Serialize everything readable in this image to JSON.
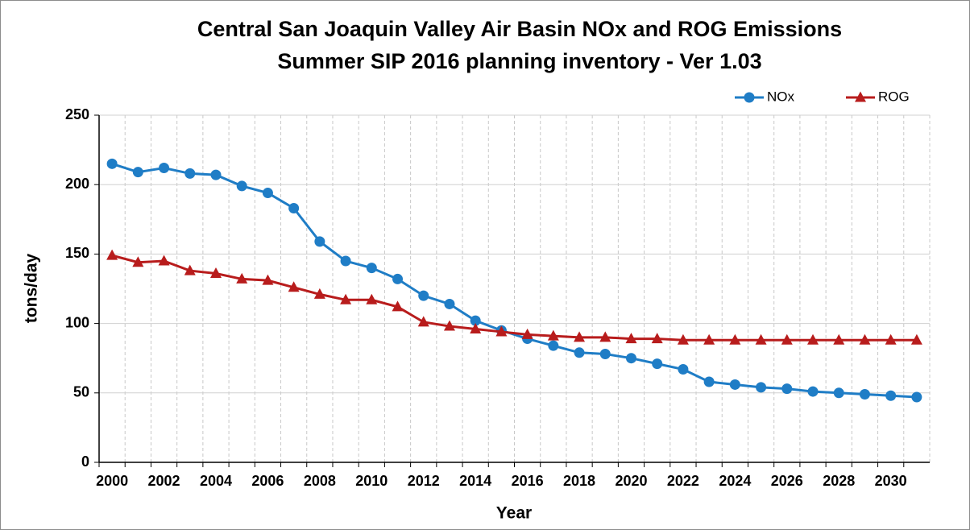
{
  "chart_data": {
    "type": "line",
    "title": "Central San Joaquin Valley Air Basin NOx and ROG Emissions",
    "subtitle": "Summer SIP 2016 planning inventory - Ver 1.03",
    "x_label": "Year",
    "y_label": "tons/day",
    "categories": [
      "2000",
      null,
      "2002",
      null,
      "2004",
      null,
      "2006",
      null,
      "2008",
      null,
      "2010",
      null,
      "2012",
      null,
      "2014",
      null,
      "2016",
      null,
      "2018",
      null,
      "2020",
      null,
      "2022",
      null,
      "2024",
      null,
      "2026",
      null,
      "2028",
      null,
      "2030",
      null
    ],
    "series": [
      {
        "name": "NOx",
        "color": "#1f7dc6",
        "marker": "circle",
        "values": [
          215,
          209,
          212,
          208,
          207,
          199,
          194,
          183,
          159,
          145,
          140,
          132,
          120,
          114,
          102,
          95,
          89,
          84,
          79,
          78,
          75,
          71,
          67,
          58,
          56,
          54,
          53,
          51,
          50,
          49,
          48,
          47
        ]
      },
      {
        "name": "ROG",
        "color": "#b81c1c",
        "marker": "triangle",
        "values": [
          149,
          144,
          145,
          138,
          136,
          132,
          131,
          126,
          121,
          117,
          117,
          112,
          101,
          98,
          96,
          94,
          92,
          91,
          90,
          90,
          89,
          89,
          88,
          88,
          88,
          88,
          88,
          88,
          88,
          88,
          88,
          88
        ]
      }
    ],
    "ylim": [
      0,
      250
    ],
    "yticks": [
      0,
      50,
      100,
      150,
      200,
      250
    ],
    "grid": true,
    "legend": "top-right"
  }
}
